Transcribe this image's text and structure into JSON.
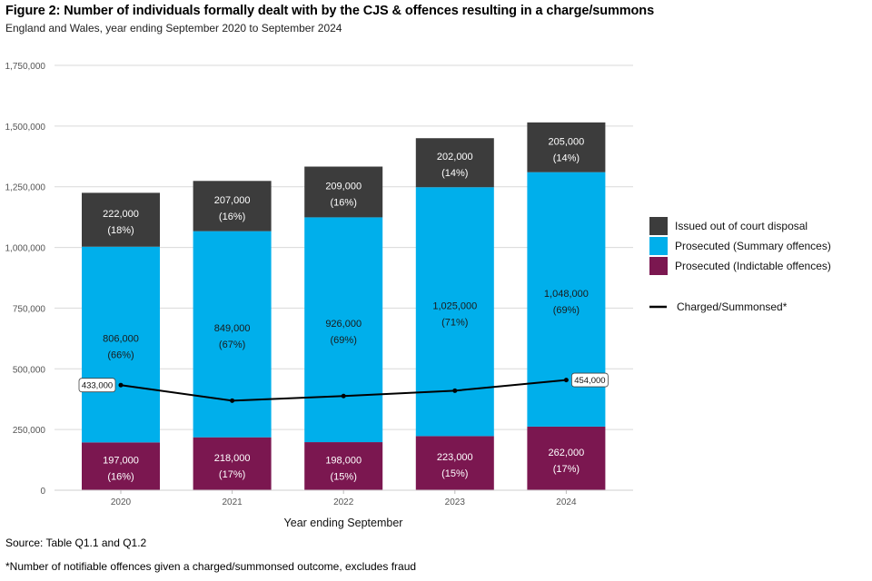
{
  "figure": {
    "title": "Figure 2: Number of individuals formally dealt with by the CJS & offences resulting in a charge/summons",
    "subtitle": "England and Wales, year ending September 2020 to September 2024",
    "source": "Source: Table Q1.1 and Q1.2",
    "footnote": "*Number of notifiable offences given a charged/summonsed outcome, excludes fraud"
  },
  "chart_data": {
    "type": "bar",
    "stacked": true,
    "title": "Figure 2: Number of individuals formally dealt with by the CJS & offences resulting in a charge/summons",
    "xlabel": "Year ending September",
    "ylabel": "",
    "categories": [
      "2020",
      "2021",
      "2022",
      "2023",
      "2024"
    ],
    "ylim": [
      0,
      1750000
    ],
    "yticks": [
      0,
      250000,
      500000,
      750000,
      1000000,
      1250000,
      1500000,
      1750000
    ],
    "ytick_labels": [
      "0",
      "250,000",
      "500,000",
      "750,000",
      "1,000,000",
      "1,250,000",
      "1,500,000",
      "1,750,000"
    ],
    "grid": true,
    "legend_position": "right",
    "series": [
      {
        "name": "Prosecuted (Indictable offences)",
        "color": "#7b1750",
        "label_color": "#ffffff",
        "values": [
          197000,
          218000,
          198000,
          223000,
          262000
        ],
        "labels": [
          "197,000",
          "218,000",
          "198,000",
          "223,000",
          "262,000"
        ],
        "percents": [
          "(16%)",
          "(17%)",
          "(15%)",
          "(15%)",
          "(17%)"
        ]
      },
      {
        "name": "Prosecuted (Summary offences)",
        "color": "#00afeb",
        "label_color": "#1a1a1a",
        "values": [
          806000,
          849000,
          926000,
          1025000,
          1048000
        ],
        "labels": [
          "806,000",
          "849,000",
          "926,000",
          "1,025,000",
          "1,048,000"
        ],
        "percents": [
          "(66%)",
          "(67%)",
          "(69%)",
          "(71%)",
          "(69%)"
        ]
      },
      {
        "name": "Issued out of court disposal",
        "color": "#3c3c3c",
        "label_color": "#ffffff",
        "values": [
          222000,
          207000,
          209000,
          202000,
          205000
        ],
        "labels": [
          "222,000",
          "207,000",
          "209,000",
          "202,000",
          "205,000"
        ],
        "percents": [
          "(18%)",
          "(16%)",
          "(16%)",
          "(14%)",
          "(14%)"
        ]
      }
    ],
    "line": {
      "name": "Charged/Summonsed*",
      "color": "#000000",
      "values": [
        433000,
        369000,
        388000,
        410000,
        454000
      ],
      "point_labels": [
        "433,000",
        null,
        null,
        null,
        "454,000"
      ]
    },
    "legend": [
      {
        "name": "Issued out of court disposal",
        "color": "#3c3c3c",
        "kind": "box"
      },
      {
        "name": "Prosecuted (Summary offences)",
        "color": "#00afeb",
        "kind": "box"
      },
      {
        "name": "Prosecuted (Indictable offences)",
        "color": "#7b1750",
        "kind": "box"
      },
      {
        "name": "Charged/Summonsed*",
        "color": "#000000",
        "kind": "line"
      }
    ]
  }
}
